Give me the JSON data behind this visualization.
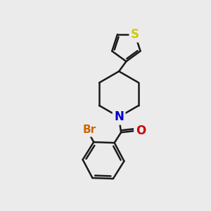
{
  "background_color": "#ebebeb",
  "bond_color": "#1a1a1a",
  "S_color": "#cccc00",
  "N_color": "#0000cc",
  "O_color": "#cc0000",
  "Br_color": "#cc6600",
  "bond_width": 1.8,
  "figsize": [
    3.0,
    3.0
  ],
  "dpi": 100,
  "xlim": [
    0,
    10
  ],
  "ylim": [
    0,
    10
  ]
}
